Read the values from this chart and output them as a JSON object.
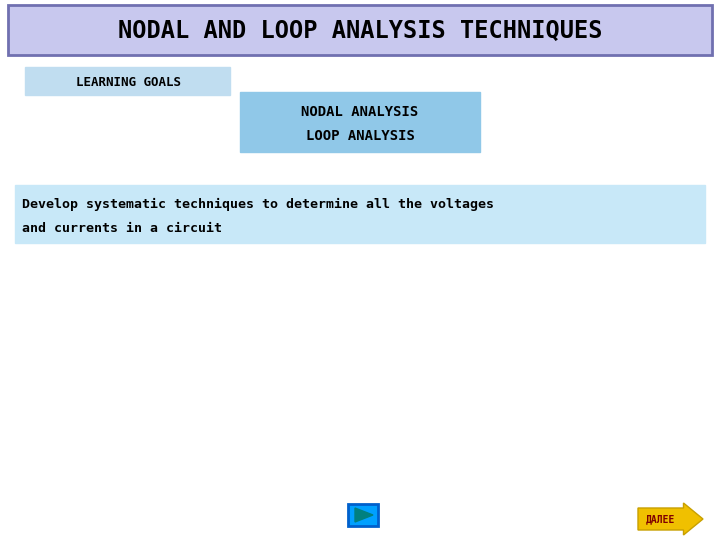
{
  "title": "NODAL AND LOOP ANALYSIS TECHNIQUES",
  "title_bg": "#c8c8ee",
  "title_border": "#7070b0",
  "title_text_color": "#000000",
  "learning_goals_text": "LEARNING GOALS",
  "learning_goals_bg": "#c0ddf0",
  "nodal_loop_text1": "NODAL ANALYSIS",
  "nodal_loop_text2": "LOOP ANALYSIS",
  "nodal_loop_bg": "#90c8e8",
  "develop_text1": "Develop systematic techniques to determine all the voltages",
  "develop_text2": "and currents in a circuit",
  "develop_bg": "#c8e8f8",
  "background_color": "#ffffff",
  "next_arrow_color": "#f0c000",
  "next_arrow_border": "#c8a000",
  "next_label": "ДАЛЕЕ",
  "font_family": "monospace",
  "play_bg": "#00a0ff",
  "play_border": "#0060cc",
  "play_triangle": "#008080"
}
